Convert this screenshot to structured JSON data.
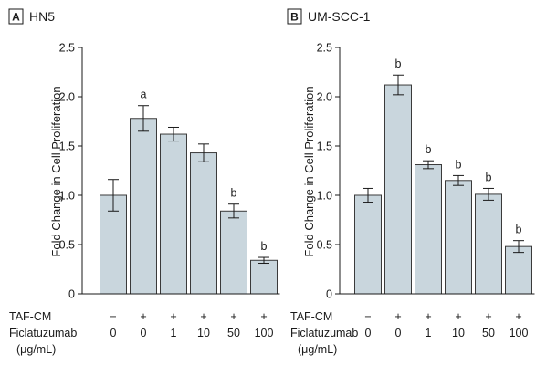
{
  "chart_data": [
    {
      "type": "bar",
      "panel_letter": "A",
      "title": "HN5",
      "ylabel": "Fold Change in Cell Proliferation",
      "xlabel": "",
      "ylim": [
        0,
        2.5
      ],
      "yticks": [
        0,
        0.5,
        1.0,
        1.5,
        2.0,
        2.5
      ],
      "ytick_labels": [
        "0",
        "0.5",
        "1.0",
        "1.5",
        "2.0",
        "2.5"
      ],
      "categories": [
        "−/0",
        "+/0",
        "+/1",
        "+/10",
        "+/50",
        "+/100"
      ],
      "tafcm": [
        "−",
        "+",
        "+",
        "+",
        "+",
        "+"
      ],
      "ficlatuzumab": [
        "0",
        "0",
        "1",
        "10",
        "50",
        "100"
      ],
      "values": [
        1.0,
        1.78,
        1.62,
        1.43,
        0.84,
        0.34
      ],
      "errors": [
        0.16,
        0.13,
        0.07,
        0.09,
        0.07,
        0.03
      ],
      "annotations": [
        "",
        "a",
        "",
        "",
        "b",
        "b"
      ],
      "grid": false
    },
    {
      "type": "bar",
      "panel_letter": "B",
      "title": "UM-SCC-1",
      "ylabel": "Fold Change in Cell Proliferation",
      "xlabel": "",
      "ylim": [
        0,
        2.5
      ],
      "yticks": [
        0,
        0.5,
        1.0,
        1.5,
        2.0,
        2.5
      ],
      "ytick_labels": [
        "0",
        "0.5",
        "1.0",
        "1.5",
        "2.0",
        "2.5"
      ],
      "categories": [
        "−/0",
        "+/0",
        "+/1",
        "+/10",
        "+/50",
        "+/100"
      ],
      "tafcm": [
        "−",
        "+",
        "+",
        "+",
        "+",
        "+"
      ],
      "ficlatuzumab": [
        "0",
        "0",
        "1",
        "10",
        "50",
        "100"
      ],
      "values": [
        1.0,
        2.12,
        1.31,
        1.15,
        1.01,
        0.48
      ],
      "errors": [
        0.07,
        0.1,
        0.04,
        0.05,
        0.06,
        0.06
      ],
      "annotations": [
        "",
        "b",
        "b",
        "b",
        "b",
        "b"
      ],
      "grid": false
    }
  ],
  "row_labels": {
    "tafcm": "TAF-CM",
    "ficlatuzumab": "Ficlatuzumab",
    "units": "(μg/mL)"
  },
  "colors": {
    "bar_fill": "#c9d6dd",
    "bar_stroke": "#3a3a3a",
    "axis": "#1a1a1a"
  }
}
